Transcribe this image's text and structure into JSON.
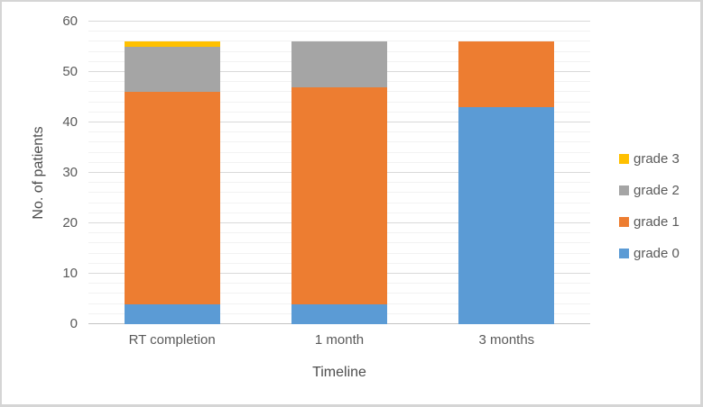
{
  "chart_data": {
    "type": "bar",
    "stacked": true,
    "title": "",
    "xlabel": "Timeline",
    "ylabel": "No. of patients",
    "categories": [
      "RT completion",
      "1 month",
      "3 months"
    ],
    "series": [
      {
        "name": "grade 0",
        "color": "#5B9BD5",
        "values": [
          4,
          4,
          43
        ]
      },
      {
        "name": "grade 1",
        "color": "#ED7D31",
        "values": [
          42,
          43,
          13
        ]
      },
      {
        "name": "grade 2",
        "color": "#A5A5A5",
        "values": [
          9,
          9,
          0
        ]
      },
      {
        "name": "grade 3",
        "color": "#FFC000",
        "values": [
          1,
          0,
          0
        ]
      }
    ],
    "stack_totals": [
      56,
      56,
      56
    ],
    "ylim": [
      0,
      60
    ],
    "y_major_ticks": [
      0,
      10,
      20,
      30,
      40,
      50,
      60
    ],
    "y_minor_step": 2,
    "grid": true,
    "legend_position": "right",
    "legend_order": [
      "grade 3",
      "grade 2",
      "grade 1",
      "grade 0"
    ]
  },
  "colors": {
    "grade0_blue": "#5B9BD5",
    "grade1_orange": "#ED7D31",
    "grade2_gray": "#A5A5A5",
    "grade3_yellow": "#FFC000",
    "gridline_major": "#d9d9d9",
    "gridline_minor": "#f2f2f2",
    "axis_text": "#595959",
    "frame_border": "#d5d5d5"
  }
}
